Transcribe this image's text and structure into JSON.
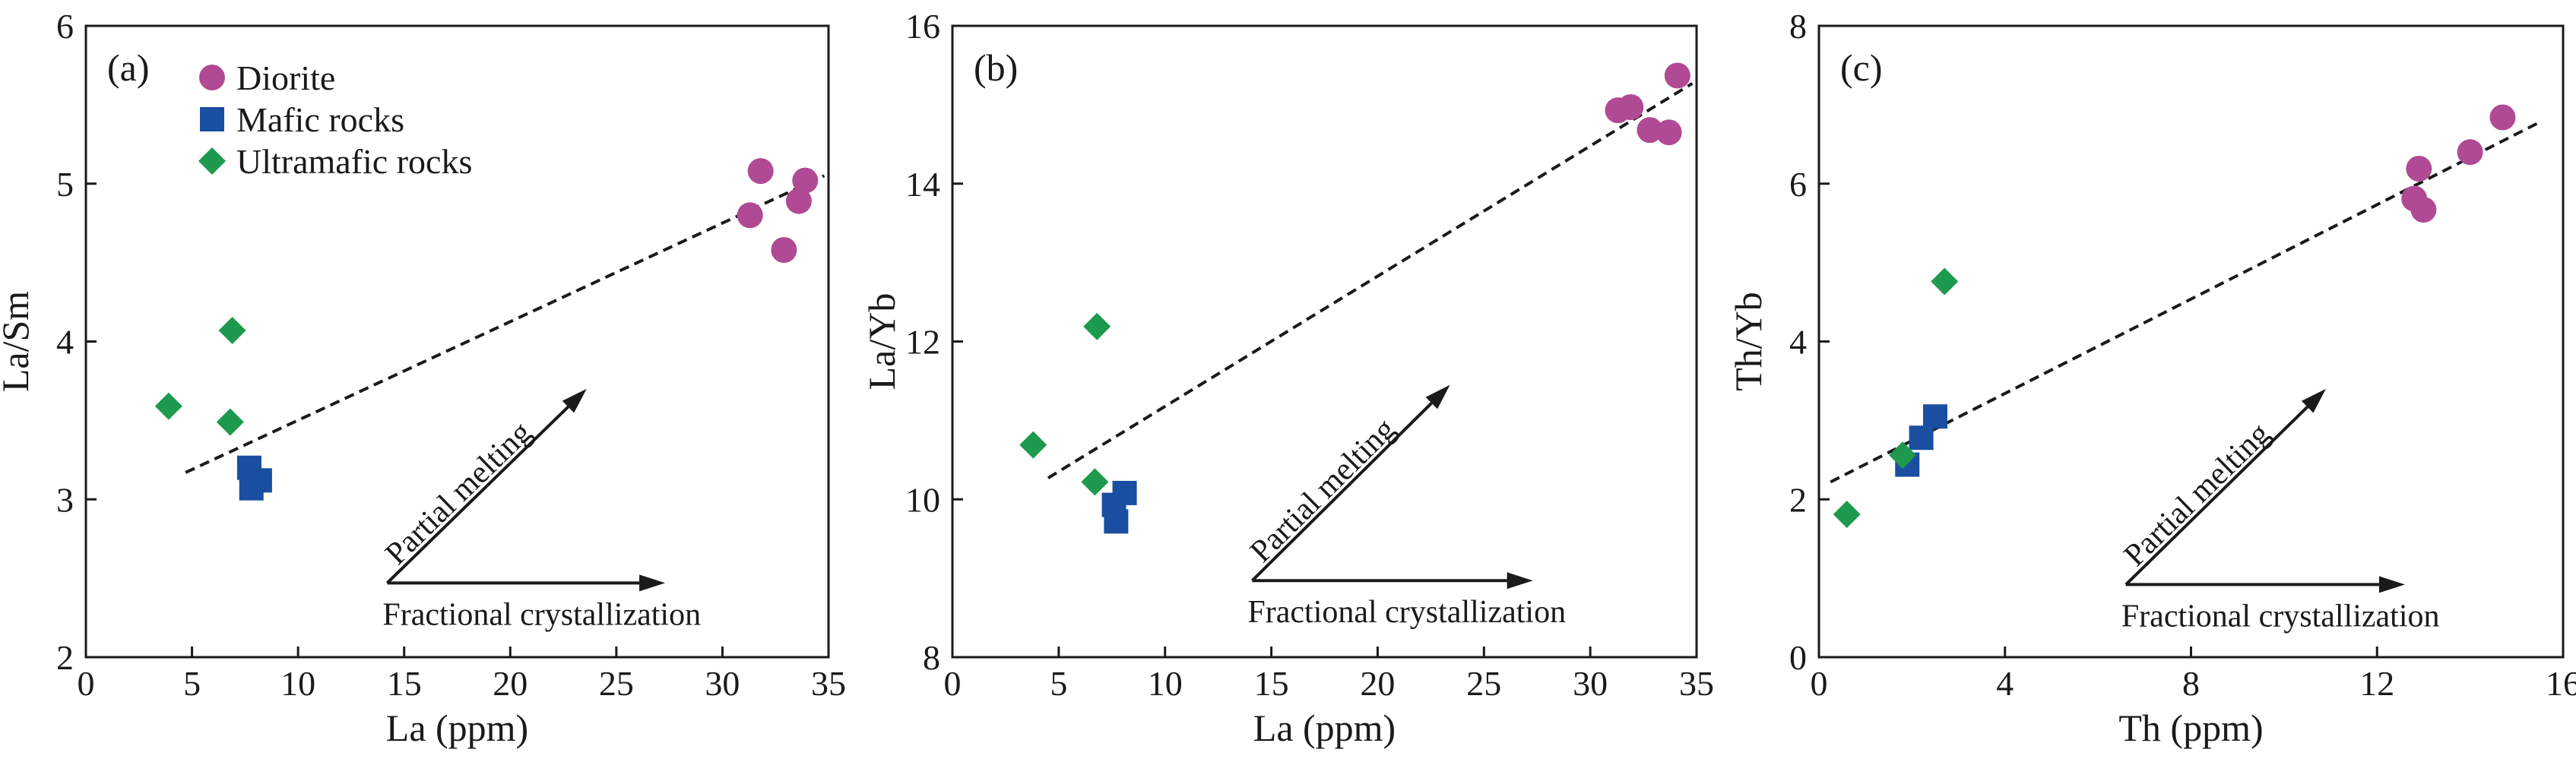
{
  "colors": {
    "diorite": "#b04a94",
    "mafic": "#1a4ea0",
    "ultramafic": "#1d9a4e",
    "axis": "#1a1a1a",
    "trend": "#1a1a1a"
  },
  "legend": [
    {
      "key": "diorite",
      "label": "Diorite",
      "marker": "circle"
    },
    {
      "key": "mafic",
      "label": "Mafic rocks",
      "marker": "square"
    },
    {
      "key": "ultramafic",
      "label": "Ultramafic rocks",
      "marker": "diamond"
    }
  ],
  "chart_data": [
    {
      "type": "scatter",
      "panel": "(a)",
      "xlabel": "La (ppm)",
      "ylabel": "La/Sm",
      "xlim": [
        0,
        35
      ],
      "ylim": [
        2,
        6
      ],
      "xticks": [
        0,
        5,
        10,
        15,
        20,
        25,
        30,
        35
      ],
      "yticks": [
        2,
        3,
        4,
        5,
        6
      ],
      "series": [
        {
          "name": "Diorite",
          "key": "diorite",
          "marker": "circle",
          "points": [
            [
              31.3,
              4.8
            ],
            [
              31.8,
              5.08
            ],
            [
              32.9,
              4.58
            ],
            [
              33.6,
              4.89
            ],
            [
              33.9,
              5.02
            ]
          ]
        },
        {
          "name": "Mafic rocks",
          "key": "mafic",
          "marker": "square",
          "points": [
            [
              7.7,
              3.2
            ],
            [
              8.2,
              3.12
            ],
            [
              7.8,
              3.07
            ]
          ]
        },
        {
          "name": "Ultramafic rocks",
          "key": "ultramafic",
          "marker": "diamond",
          "points": [
            [
              3.9,
              3.59
            ],
            [
              6.9,
              4.07
            ],
            [
              6.8,
              3.49
            ]
          ]
        }
      ],
      "trendline": [
        [
          4.7,
          3.17
        ],
        [
          34.8,
          5.05
        ]
      ],
      "arrows": [
        {
          "label": "Partial melting",
          "from": [
            14.2,
            2.47
          ],
          "to": [
            23.6,
            3.7
          ]
        },
        {
          "label": "Fractional crystallization",
          "from": [
            14.2,
            2.47
          ],
          "to": [
            27.3,
            2.47
          ]
        }
      ]
    },
    {
      "type": "scatter",
      "panel": "(b)",
      "xlabel": "La (ppm)",
      "ylabel": "La/Yb",
      "xlim": [
        0,
        35
      ],
      "ylim": [
        8,
        16
      ],
      "xticks": [
        0,
        5,
        10,
        15,
        20,
        25,
        30,
        35
      ],
      "yticks": [
        8,
        10,
        12,
        14,
        16
      ],
      "series": [
        {
          "name": "Diorite",
          "key": "diorite",
          "marker": "circle",
          "points": [
            [
              31.3,
              14.93
            ],
            [
              31.9,
              14.97
            ],
            [
              32.8,
              14.68
            ],
            [
              33.7,
              14.65
            ],
            [
              34.1,
              15.37
            ]
          ]
        },
        {
          "name": "Mafic rocks",
          "key": "mafic",
          "marker": "square",
          "points": [
            [
              8.1,
              10.08
            ],
            [
              7.6,
              9.93
            ],
            [
              7.7,
              9.72
            ]
          ]
        },
        {
          "name": "Ultramafic rocks",
          "key": "ultramafic",
          "marker": "diamond",
          "points": [
            [
              3.8,
              10.69
            ],
            [
              6.8,
              12.19
            ],
            [
              6.7,
              10.22
            ]
          ]
        }
      ],
      "trendline": [
        [
          4.5,
          10.27
        ],
        [
          34.8,
          15.27
        ]
      ],
      "arrows": [
        {
          "label": "Partial melting",
          "from": [
            14.1,
            8.97
          ],
          "to": [
            23.4,
            11.45
          ]
        },
        {
          "label": "Fractional crystallization",
          "from": [
            14.1,
            8.97
          ],
          "to": [
            27.3,
            8.97
          ]
        }
      ]
    },
    {
      "type": "scatter",
      "panel": "(c)",
      "xlabel": "Th (ppm)",
      "ylabel": "Th/Yb",
      "xlim": [
        0,
        16
      ],
      "ylim": [
        0,
        8
      ],
      "xticks": [
        0,
        4,
        8,
        12,
        16
      ],
      "yticks": [
        0,
        2,
        4,
        6,
        8
      ],
      "series": [
        {
          "name": "Diorite",
          "key": "diorite",
          "marker": "circle",
          "points": [
            [
              12.8,
              5.81
            ],
            [
              12.9,
              6.19
            ],
            [
              13.0,
              5.67
            ],
            [
              14.0,
              6.4
            ],
            [
              14.7,
              6.84
            ]
          ]
        },
        {
          "name": "Mafic rocks",
          "key": "mafic",
          "marker": "square",
          "points": [
            [
              1.9,
              2.44
            ],
            [
              2.2,
              2.78
            ],
            [
              2.5,
              3.05
            ]
          ]
        },
        {
          "name": "Ultramafic rocks",
          "key": "ultramafic",
          "marker": "diamond",
          "points": [
            [
              0.6,
              1.81
            ],
            [
              1.8,
              2.56
            ],
            [
              2.7,
              4.76
            ]
          ]
        }
      ],
      "trendline": [
        [
          0.25,
          2.22
        ],
        [
          15.5,
          6.78
        ]
      ],
      "arrows": [
        {
          "label": "Partial melting",
          "from": [
            6.6,
            0.92
          ],
          "to": [
            10.9,
            3.4
          ]
        },
        {
          "label": "Fractional crystallization",
          "from": [
            6.6,
            0.92
          ],
          "to": [
            12.6,
            0.92
          ]
        }
      ]
    }
  ]
}
